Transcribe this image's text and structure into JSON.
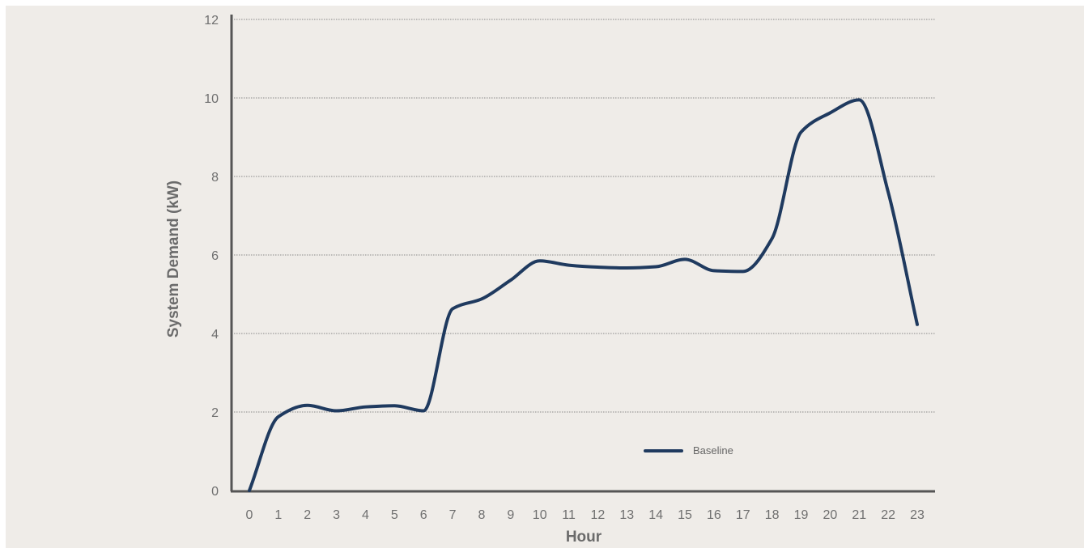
{
  "chart_data": {
    "type": "line",
    "title": "",
    "xlabel": "Hour",
    "ylabel": "System Demand (kW)",
    "x": [
      0,
      1,
      2,
      3,
      4,
      5,
      6,
      7,
      8,
      9,
      10,
      11,
      12,
      13,
      14,
      15,
      16,
      17,
      18,
      19,
      20,
      21,
      22,
      23
    ],
    "xticks": [
      "0",
      "1",
      "2",
      "3",
      "4",
      "5",
      "6",
      "7",
      "8",
      "9",
      "10",
      "11",
      "12",
      "13",
      "14",
      "15",
      "16",
      "17",
      "18",
      "19",
      "20",
      "21",
      "22",
      "23"
    ],
    "yticks": [
      "0",
      "2",
      "4",
      "6",
      "8",
      "10",
      "12"
    ],
    "ylim": [
      0,
      12
    ],
    "xlim": [
      0,
      23
    ],
    "grid": "horizontal-dotted",
    "legend_position": "bottom-right",
    "series": [
      {
        "name": "Baseline",
        "color": "#1f3a5f",
        "values": [
          0,
          1.88,
          2.17,
          2.03,
          2.13,
          2.16,
          2.03,
          4.63,
          4.88,
          5.36,
          5.85,
          5.74,
          5.69,
          5.67,
          5.7,
          5.89,
          5.6,
          5.58,
          6.42,
          9.13,
          9.62,
          9.95,
          7.6,
          4.23
        ]
      }
    ]
  },
  "colors": {
    "background": "#efece8",
    "axis": "#555555",
    "grid": "#888888",
    "line": "#1f3a5f"
  }
}
